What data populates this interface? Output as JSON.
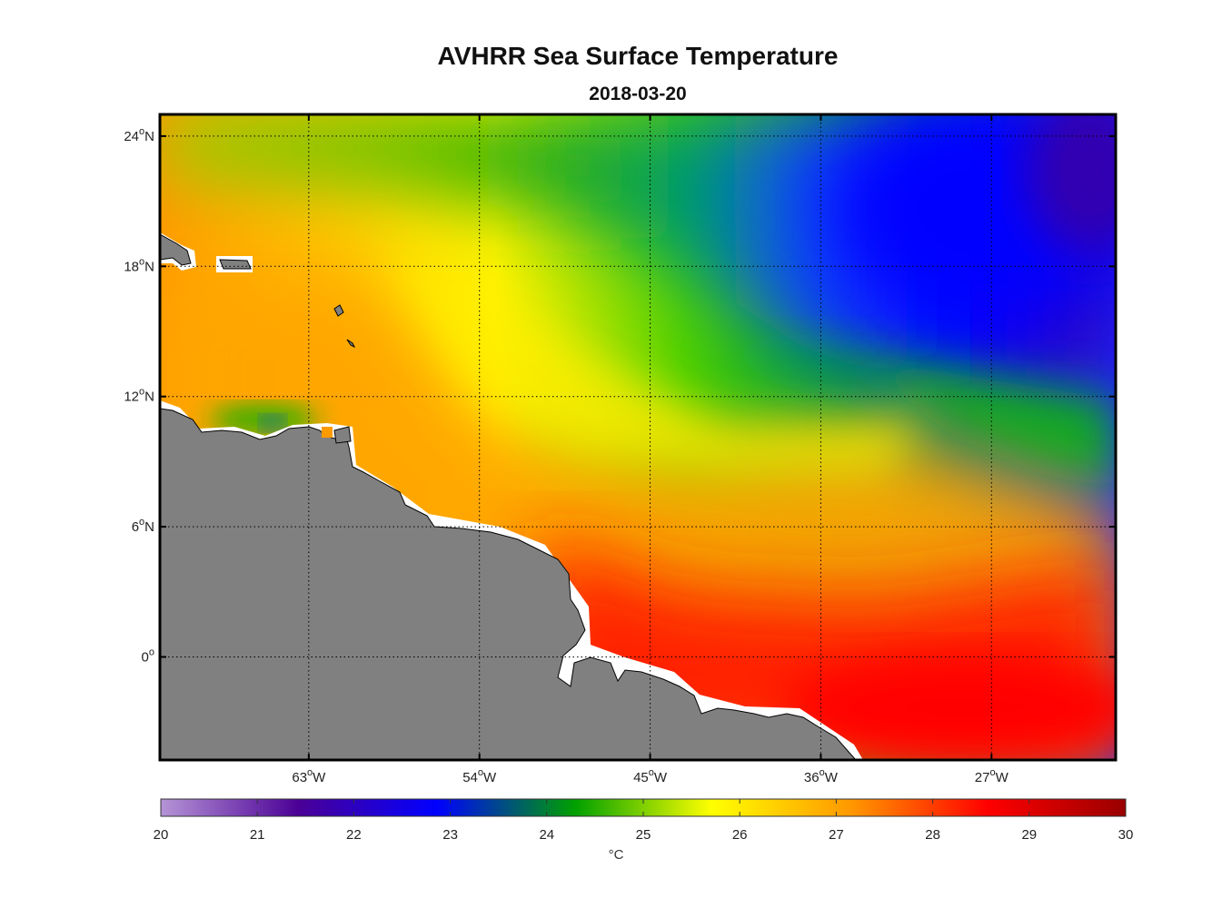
{
  "title": "AVHRR Sea Surface Temperature",
  "subtitle": "2018-03-20",
  "map": {
    "lon_range": [
      -70.85,
      -20.45
    ],
    "lat_range": [
      -4.75,
      25.0
    ],
    "lat_ticks": [
      {
        "value": 24,
        "label": "24",
        "suffix": "N"
      },
      {
        "value": 18,
        "label": "18",
        "suffix": "N"
      },
      {
        "value": 12,
        "label": "12",
        "suffix": "N"
      },
      {
        "value": 6,
        "label": "6",
        "suffix": "N"
      },
      {
        "value": 0,
        "label": "0",
        "suffix": ""
      }
    ],
    "lon_ticks": [
      {
        "value": -63,
        "label": "63",
        "suffix": "W"
      },
      {
        "value": -54,
        "label": "54",
        "suffix": "W"
      },
      {
        "value": -45,
        "label": "45",
        "suffix": "W"
      },
      {
        "value": -36,
        "label": "36",
        "suffix": "W"
      },
      {
        "value": -27,
        "label": "27",
        "suffix": "W"
      }
    ],
    "land_color": "#808080",
    "grid": "dotted"
  },
  "colorbar": {
    "min": 20,
    "max": 30,
    "ticks": [
      "20",
      "21",
      "22",
      "23",
      "24",
      "25",
      "26",
      "27",
      "28",
      "29",
      "30"
    ],
    "unit": "°C",
    "colors": [
      "#b594d6",
      "#4b0096",
      "#0000ff",
      "#00a000",
      "#ffff00",
      "#ff9900",
      "#ff0000",
      "#990000"
    ]
  }
}
